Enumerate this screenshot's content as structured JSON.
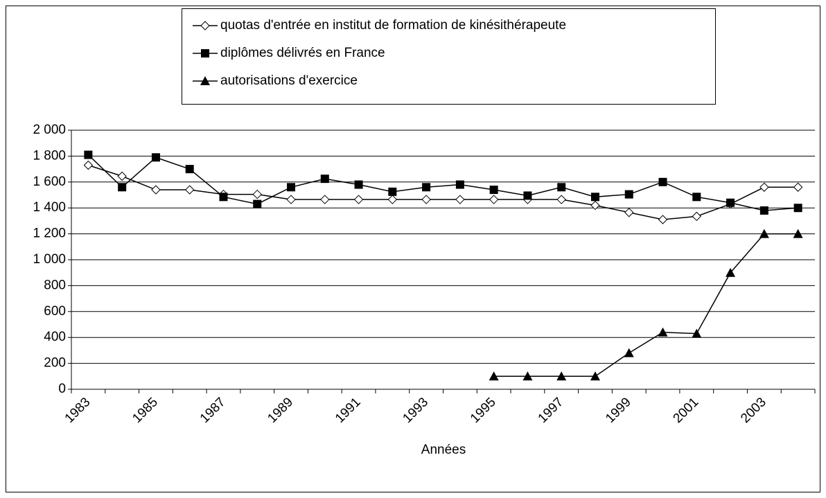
{
  "chart_data": {
    "type": "line",
    "x_label": "Années",
    "categories": [
      "1983",
      null,
      "1985",
      null,
      "1987",
      null,
      "1989",
      null,
      "1991",
      null,
      "1993",
      null,
      "1995",
      null,
      "1997",
      null,
      "1999",
      null,
      "2001",
      null,
      "2003",
      null
    ],
    "series": [
      {
        "name": "quotas d'entrée en institut de formation de kinésithérapeute",
        "color": "#000000",
        "marker": "diamond",
        "values": [
          1730,
          1645,
          1540,
          1540,
          1505,
          1505,
          1465,
          1465,
          1465,
          1465,
          1465,
          1465,
          1465,
          1465,
          1465,
          1420,
          1365,
          1310,
          1335,
          1430,
          1560,
          1560
        ]
      },
      {
        "name": "diplômes délivrés en France",
        "color": "#000000",
        "marker": "square",
        "values": [
          1810,
          1560,
          1790,
          1700,
          1485,
          1430,
          1560,
          1625,
          1580,
          1525,
          1560,
          1580,
          1540,
          1495,
          1560,
          1485,
          1505,
          1600,
          1485,
          1440,
          1380,
          1400
        ]
      },
      {
        "name": "autorisations d'exercice",
        "color": "#000000",
        "marker": "triangle",
        "values": [
          null,
          null,
          null,
          null,
          null,
          null,
          null,
          null,
          null,
          null,
          null,
          null,
          100,
          100,
          100,
          100,
          280,
          440,
          430,
          900,
          1200,
          1200
        ]
      }
    ],
    "ylim": [
      0,
      2000
    ],
    "yticks": [
      0,
      200,
      400,
      600,
      800,
      {
        "value": 1000,
        "label": "1 000"
      },
      {
        "value": 1200,
        "label": "1 200"
      },
      {
        "value": 1400,
        "label": "1 400"
      },
      {
        "value": 1600,
        "label": "1 600"
      },
      {
        "value": 1800,
        "label": "1 800"
      },
      {
        "value": 2000,
        "label": "2 000"
      }
    ],
    "grid": true,
    "legend": "top"
  }
}
